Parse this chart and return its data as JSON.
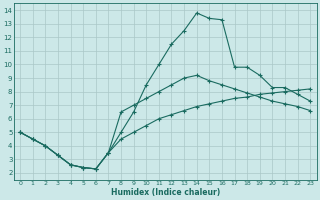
{
  "xlabel": "Humidex (Indice chaleur)",
  "bg_color": "#cce8e8",
  "grid_color": "#aac8c8",
  "line_color": "#1a6b60",
  "xlim": [
    -0.5,
    23.5
  ],
  "ylim": [
    1.5,
    14.5
  ],
  "xticks": [
    0,
    1,
    2,
    3,
    4,
    5,
    6,
    7,
    8,
    9,
    10,
    11,
    12,
    13,
    14,
    15,
    16,
    17,
    18,
    19,
    20,
    21,
    22,
    23
  ],
  "yticks": [
    2,
    3,
    4,
    5,
    6,
    7,
    8,
    9,
    10,
    11,
    12,
    13,
    14
  ],
  "line1_x": [
    0,
    1,
    2,
    3,
    4,
    5,
    6,
    7,
    8,
    9,
    10,
    11,
    12,
    13,
    14,
    15,
    16,
    17,
    18,
    19,
    20,
    21,
    22,
    23
  ],
  "line1_y": [
    5.0,
    4.5,
    4.0,
    3.3,
    2.6,
    2.4,
    2.3,
    3.5,
    5.0,
    6.5,
    8.5,
    10.0,
    11.5,
    12.5,
    13.8,
    13.4,
    13.3,
    9.8,
    9.8,
    9.2,
    8.3,
    8.3,
    7.8,
    7.3
  ],
  "line2_x": [
    0,
    1,
    2,
    3,
    4,
    5,
    6,
    7,
    8,
    9,
    10,
    11,
    12,
    13,
    14,
    15,
    16,
    17,
    18,
    19,
    20,
    21,
    22,
    23
  ],
  "line2_y": [
    5.0,
    4.5,
    4.0,
    3.3,
    2.6,
    2.4,
    2.3,
    3.5,
    6.5,
    7.0,
    7.5,
    8.0,
    8.5,
    9.0,
    9.2,
    8.8,
    8.5,
    8.2,
    7.9,
    7.6,
    7.3,
    7.1,
    6.9,
    6.6
  ],
  "line3_x": [
    0,
    1,
    2,
    3,
    4,
    5,
    6,
    7,
    8,
    9,
    10,
    11,
    12,
    13,
    14,
    15,
    16,
    17,
    18,
    19,
    20,
    21,
    22,
    23
  ],
  "line3_y": [
    5.0,
    4.5,
    4.0,
    3.3,
    2.6,
    2.4,
    2.3,
    3.5,
    4.5,
    5.0,
    5.5,
    6.0,
    6.3,
    6.6,
    6.9,
    7.1,
    7.3,
    7.5,
    7.6,
    7.8,
    7.9,
    8.0,
    8.1,
    8.2
  ]
}
